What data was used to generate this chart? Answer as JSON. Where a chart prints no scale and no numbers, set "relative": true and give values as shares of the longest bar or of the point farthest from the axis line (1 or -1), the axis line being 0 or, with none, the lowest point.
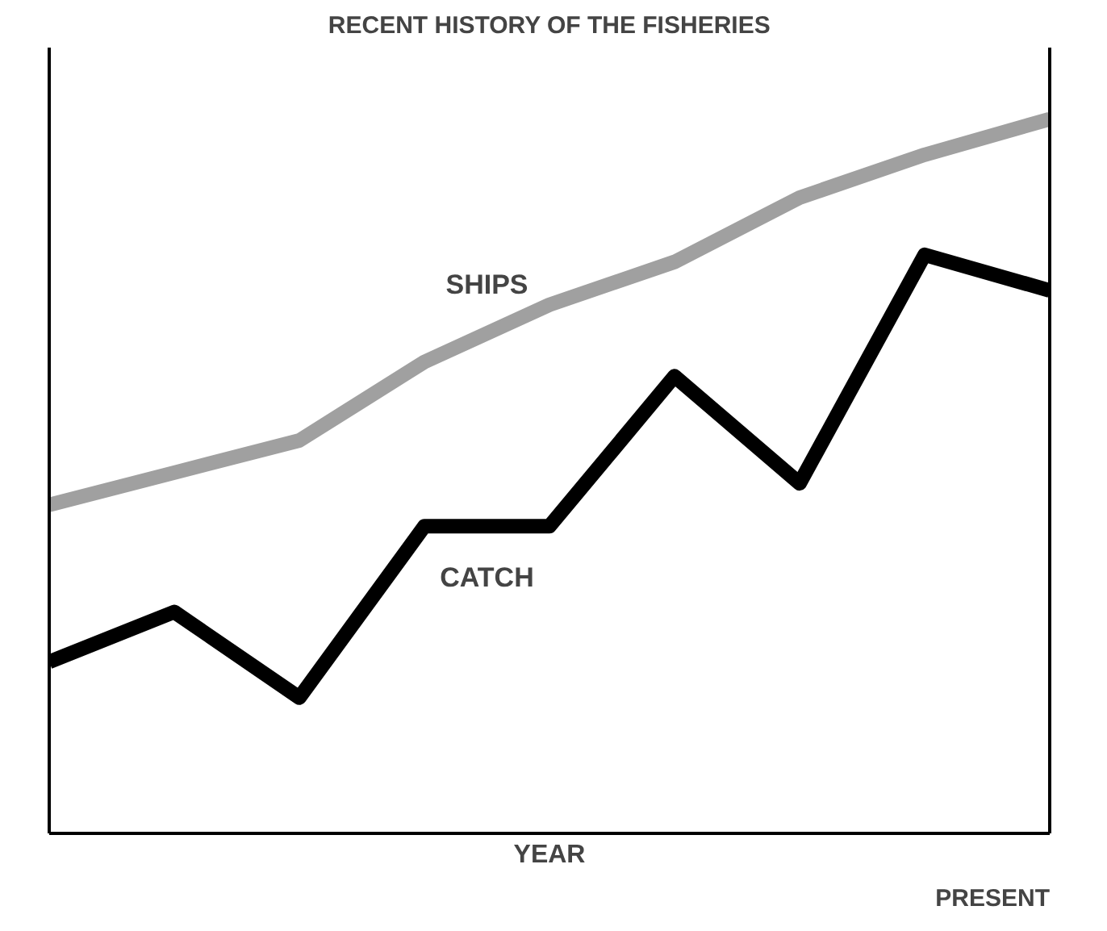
{
  "chart_data": {
    "type": "line",
    "title": "RECENT HISTORY OF THE FISHERIES",
    "xlabel": "YEAR",
    "relative": true,
    "categories": [
      null,
      null,
      null,
      null,
      null,
      null,
      null,
      null,
      null
    ],
    "annotations": [
      "PRESENT"
    ],
    "grid": false,
    "legend": false,
    "marker": "none",
    "line_style": "solid",
    "series": [
      {
        "name": "SHIPS",
        "color": "#a0a0a0",
        "values": [
          0.46,
          0.505,
          0.55,
          0.66,
          0.74,
          0.8,
          0.89,
          0.95,
          1.0
        ]
      },
      {
        "name": "CATCH",
        "color": "#000000",
        "values": [
          0.24,
          0.31,
          0.19,
          0.43,
          0.43,
          0.64,
          0.49,
          0.81,
          0.76
        ]
      }
    ]
  }
}
